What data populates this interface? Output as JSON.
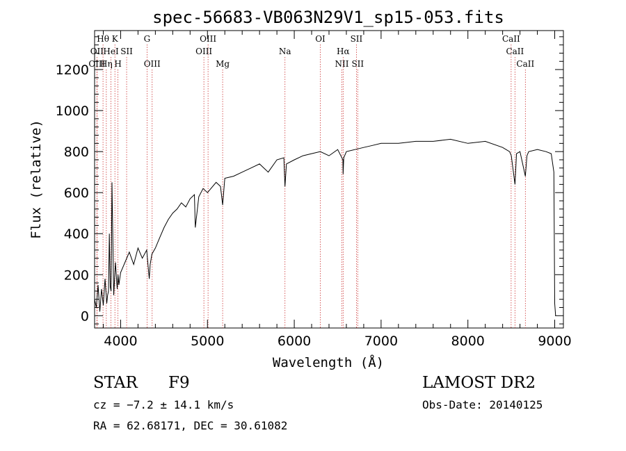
{
  "chart_data": {
    "type": "line",
    "title": "spec-56683-VB063N29V1_sp15-053.fits",
    "xlabel": "Wavelength (Å)",
    "ylabel": "Flux (relative)",
    "xlim": [
      3700,
      9100
    ],
    "ylim": [
      -60,
      1390
    ],
    "x_ticks": [
      4000,
      5000,
      6000,
      7000,
      8000,
      9000
    ],
    "y_ticks": [
      0,
      200,
      400,
      600,
      800,
      1000,
      1200
    ],
    "grid": false,
    "series": [
      {
        "x": [
          3700,
          3720,
          3740,
          3760,
          3780,
          3800,
          3820,
          3840,
          3850,
          3860,
          3870,
          3880,
          3890,
          3900,
          3920,
          3940,
          3960,
          3970,
          3980,
          4000,
          4050,
          4100,
          4150,
          4200,
          4250,
          4300,
          4330,
          4340,
          4360,
          4400,
          4450,
          4500,
          4550,
          4600,
          4650,
          4700,
          4750,
          4800,
          4850,
          4860,
          4900,
          4950,
          5000,
          5100,
          5150,
          5175,
          5200,
          5300,
          5400,
          5500,
          5600,
          5700,
          5800,
          5880,
          5893,
          5910,
          6000,
          6100,
          6200,
          6300,
          6400,
          6500,
          6560,
          6563,
          6570,
          6600,
          6700,
          6800,
          6900,
          7000,
          7200,
          7400,
          7600,
          7800,
          8000,
          8200,
          8400,
          8480,
          8500,
          8542,
          8560,
          8600,
          8662,
          8680,
          8700,
          8800,
          8900,
          8960,
          8990,
          9000,
          9010
        ],
        "y": [
          80,
          40,
          150,
          20,
          130,
          50,
          180,
          60,
          100,
          120,
          400,
          140,
          120,
          650,
          100,
          260,
          130,
          200,
          150,
          210,
          260,
          310,
          250,
          330,
          280,
          320,
          180,
          250,
          300,
          330,
          380,
          430,
          470,
          500,
          520,
          550,
          530,
          570,
          590,
          430,
          580,
          620,
          600,
          650,
          630,
          540,
          670,
          680,
          700,
          720,
          740,
          700,
          760,
          770,
          630,
          740,
          760,
          780,
          790,
          800,
          780,
          810,
          760,
          690,
          770,
          800,
          810,
          820,
          830,
          840,
          840,
          850,
          850,
          860,
          840,
          850,
          820,
          800,
          780,
          640,
          790,
          800,
          680,
          780,
          800,
          810,
          800,
          790,
          700,
          60,
          0
        ]
      }
    ],
    "line_markers": [
      {
        "label": "Hθ",
        "x": 3797,
        "row": 0
      },
      {
        "label": "OII",
        "x": 3727,
        "row": 1
      },
      {
        "label": "OIII",
        "x": 3727,
        "row": 2
      },
      {
        "label": "K",
        "x": 3934,
        "row": 0
      },
      {
        "label": "HeI",
        "x": 3889,
        "row": 1
      },
      {
        "label": "Hη",
        "x": 3835,
        "row": 2
      },
      {
        "label": "SII",
        "x": 4069,
        "row": 1
      },
      {
        "label": "H",
        "x": 3969,
        "row": 2
      },
      {
        "label": "G",
        "x": 4304,
        "row": 0
      },
      {
        "label": "OIII",
        "x": 4363,
        "row": 2
      },
      {
        "label": "OIII",
        "x": 5007,
        "row": 0
      },
      {
        "label": "OIII",
        "x": 4959,
        "row": 1
      },
      {
        "label": "Mg",
        "x": 5175,
        "row": 2
      },
      {
        "label": "Na",
        "x": 5893,
        "row": 1
      },
      {
        "label": "OI",
        "x": 6300,
        "row": 0
      },
      {
        "label": "Hα",
        "x": 6563,
        "row": 1
      },
      {
        "label": "NII",
        "x": 6548,
        "row": 2
      },
      {
        "label": "SII",
        "x": 6716,
        "row": 0
      },
      {
        "label": "SII",
        "x": 6731,
        "row": 2
      },
      {
        "label": "CaII",
        "x": 8498,
        "row": 0
      },
      {
        "label": "CaII",
        "x": 8542,
        "row": 1
      },
      {
        "label": "CaII",
        "x": 8662,
        "row": 2
      }
    ]
  },
  "info": {
    "object_class": "STAR",
    "subclass": "F9",
    "survey": "LAMOST DR2",
    "redshift": "cz = −7.2 ± 14.1 km/s",
    "obs_date": "Obs-Date: 20140125",
    "coords": "RA =  62.68171, DEC =  30.61082"
  }
}
